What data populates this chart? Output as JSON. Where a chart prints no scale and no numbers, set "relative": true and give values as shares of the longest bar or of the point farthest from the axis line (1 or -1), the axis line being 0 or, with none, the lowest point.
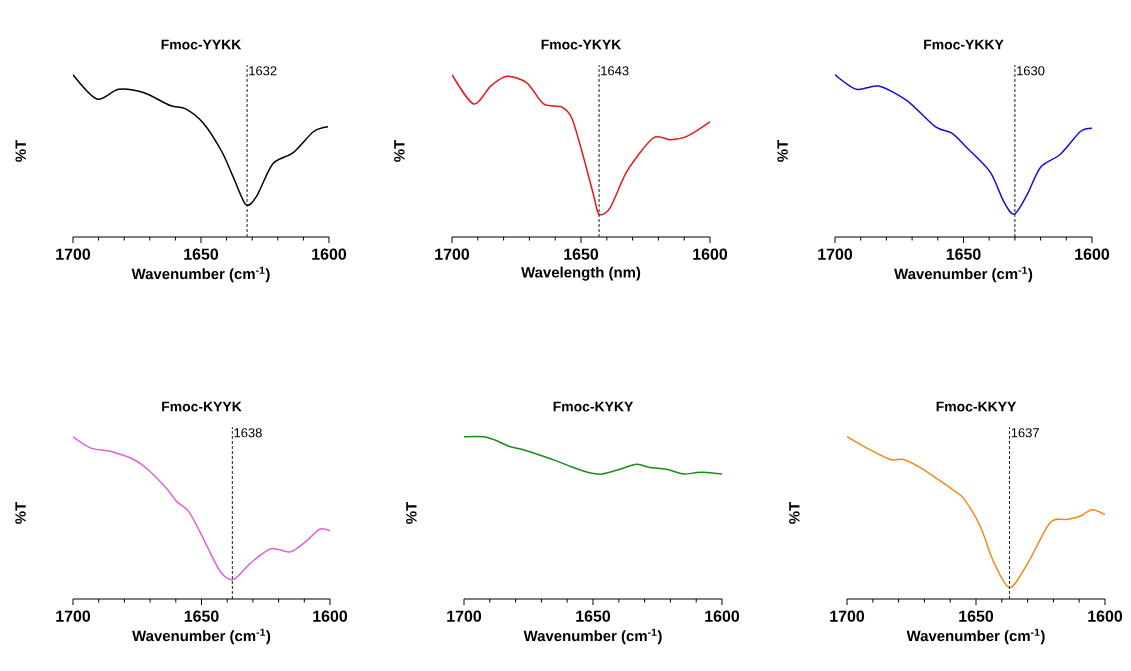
{
  "chart_data": [
    {
      "type": "line",
      "title": "Fmoc-YYKK",
      "xlabel": "Wavenumber (cm$^{-1}$)",
      "ylabel": "%T",
      "relative": true,
      "xlim": [
        1700,
        1600
      ],
      "xticks": [
        1700,
        1650,
        1600
      ],
      "color": "#000000",
      "x": [
        1700,
        1690.6,
        1682.2,
        1672.5,
        1662,
        1656,
        1649,
        1642,
        1637.4,
        1632.5,
        1628.3,
        1622,
        1614,
        1606,
        1600.4
      ],
      "values": [
        1.0,
        0.85,
        0.91,
        0.89,
        0.81,
        0.79,
        0.7,
        0.53,
        0.37,
        0.2,
        0.25,
        0.45,
        0.52,
        0.65,
        0.68
      ],
      "ref_lines": [
        {
          "axis": "x",
          "value": 1632,
          "label": "1632",
          "line_style": "dashed"
        }
      ]
    },
    {
      "type": "line",
      "title": "Fmoc-YKYK",
      "xlabel": "Wavelength (nm)",
      "ylabel": "%T",
      "relative": true,
      "xlim": [
        1700,
        1600
      ],
      "xticks": [
        1700,
        1650,
        1600
      ],
      "color": "#e8141c",
      "x": [
        1700,
        1691.6,
        1685,
        1678.7,
        1671,
        1664.5,
        1657.4,
        1653.5,
        1649,
        1645,
        1643,
        1638.7,
        1632,
        1622,
        1615.5,
        1609,
        1600
      ],
      "values": [
        1.0,
        0.82,
        0.93,
        0.99,
        0.95,
        0.82,
        0.8,
        0.73,
        0.49,
        0.25,
        0.14,
        0.18,
        0.41,
        0.61,
        0.6,
        0.62,
        0.71
      ],
      "ref_lines": [
        {
          "axis": "x",
          "value": 1643,
          "label": "1643",
          "line_style": "dashed"
        }
      ]
    },
    {
      "type": "line",
      "title": "Fmoc-YKKY",
      "xlabel": "Wavenumber (cm$^{-1}$)",
      "ylabel": "%T",
      "relative": true,
      "xlim": [
        1700,
        1600
      ],
      "xticks": [
        1700,
        1650,
        1600
      ],
      "color": "#1010d8",
      "x": [
        1700,
        1691.6,
        1683,
        1672,
        1661,
        1654.5,
        1648.7,
        1639.6,
        1634.4,
        1630.3,
        1625.3,
        1620,
        1612.3,
        1604.5,
        1600
      ],
      "values": [
        1.0,
        0.91,
        0.93,
        0.84,
        0.68,
        0.64,
        0.55,
        0.4,
        0.22,
        0.14,
        0.26,
        0.43,
        0.51,
        0.65,
        0.67
      ],
      "ref_lines": [
        {
          "axis": "x",
          "value": 1630,
          "label": "1630",
          "line_style": "dashed"
        }
      ]
    },
    {
      "type": "line",
      "title": "Fmoc-KYYK",
      "xlabel": "Wavenumber (cm$^{-1}$)",
      "ylabel": "%T",
      "relative": true,
      "xlim": [
        1700,
        1600
      ],
      "xticks": [
        1700,
        1650,
        1600
      ],
      "color": "#e060d8",
      "x": [
        1700,
        1693,
        1685.5,
        1676.4,
        1671,
        1663.5,
        1659.6,
        1655,
        1650.5,
        1648,
        1642.7,
        1637.6,
        1631,
        1623,
        1615.5,
        1609,
        1604,
        1600
      ],
      "values": [
        1.0,
        0.93,
        0.91,
        0.86,
        0.8,
        0.68,
        0.6,
        0.54,
        0.41,
        0.33,
        0.17,
        0.12,
        0.22,
        0.31,
        0.29,
        0.36,
        0.43,
        0.42
      ],
      "ref_lines": [
        {
          "axis": "x",
          "value": 1638,
          "label": "1638",
          "line_style": "dashed"
        }
      ]
    },
    {
      "type": "line",
      "title": "Fmoc-KYKY",
      "xlabel": "Wavenumber (cm$^{-1}$)",
      "ylabel": "%T",
      "relative": true,
      "xlim": [
        1700,
        1600
      ],
      "xticks": [
        1700,
        1650,
        1600
      ],
      "color": "#1a8a1a",
      "x": [
        1700,
        1692.6,
        1688,
        1682.3,
        1677,
        1669.3,
        1664,
        1657.6,
        1651.8,
        1646.6,
        1639.5,
        1633,
        1628,
        1621.5,
        1615,
        1609.7,
        1605.8,
        1600
      ],
      "values": [
        1.0,
        1.0,
        0.98,
        0.94,
        0.92,
        0.88,
        0.85,
        0.81,
        0.78,
        0.77,
        0.8,
        0.83,
        0.81,
        0.8,
        0.77,
        0.78,
        0.78,
        0.77
      ]
    },
    {
      "type": "line",
      "title": "Fmoc-KKYY",
      "xlabel": "Wavenumber (cm$^{-1}$)",
      "ylabel": "%T",
      "relative": true,
      "xlim": [
        1700,
        1600
      ],
      "xticks": [
        1700,
        1650,
        1600
      ],
      "color": "#f08a1a",
      "x": [
        1700,
        1692.3,
        1683.2,
        1678,
        1671.6,
        1665,
        1658.7,
        1654.8,
        1648.4,
        1643.2,
        1637,
        1630.3,
        1621.3,
        1614.8,
        1609.7,
        1605,
        1600
      ],
      "values": [
        1.0,
        0.93,
        0.86,
        0.86,
        0.81,
        0.74,
        0.67,
        0.62,
        0.45,
        0.23,
        0.07,
        0.21,
        0.47,
        0.49,
        0.51,
        0.55,
        0.52
      ],
      "ref_lines": [
        {
          "axis": "x",
          "value": 1637,
          "label": "1637",
          "line_style": "dashed"
        }
      ]
    }
  ]
}
